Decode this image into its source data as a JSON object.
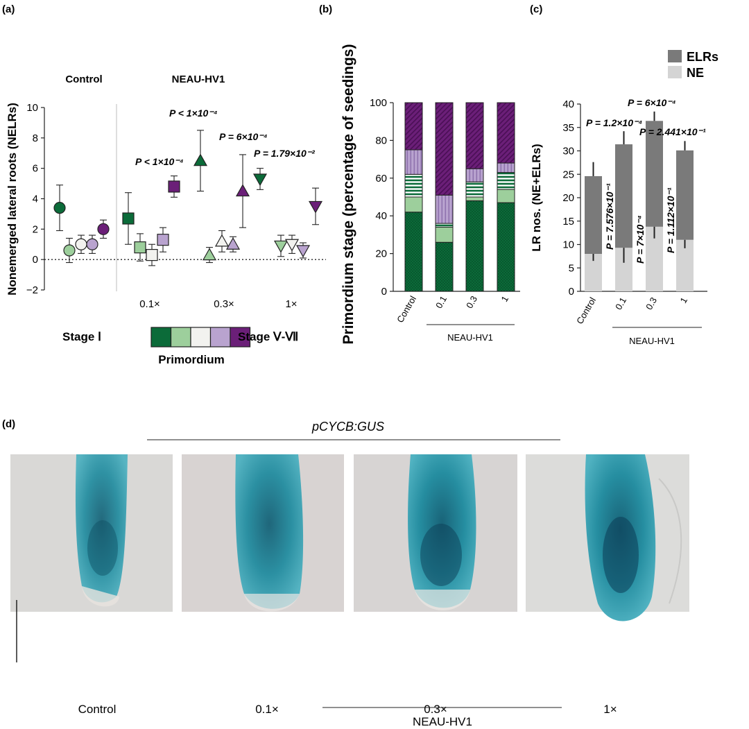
{
  "panels": {
    "a": "(a)",
    "b": "(b)",
    "c": "(c)",
    "d": "(d)"
  },
  "colors": {
    "stage1": "#0b6b39",
    "stage2": "#9dcf9c",
    "stage3": "#f2f2ef",
    "stage4": "#b9a3cf",
    "stage5": "#6b1f78",
    "ne": "#d4d4d4",
    "elrs": "#7a7a7a"
  },
  "panel_a": {
    "group_control": "Control",
    "group_treat": "NEAU-HV1",
    "legend_left": "Stage Ⅰ",
    "legend_right": "Stage Ⅴ-Ⅶ",
    "legend_caption": "Primordium",
    "p_labels": [
      {
        "text": "P < 1×10⁻⁴"
      },
      {
        "text": "P < 1×10⁻⁴"
      },
      {
        "text": "P = 6×10⁻⁴"
      },
      {
        "text": "P = 1.79×10⁻²"
      }
    ]
  },
  "panel_b": {
    "group_label": "NEAU-HV1"
  },
  "panel_c": {
    "legend": [
      "ELRs",
      "NE"
    ],
    "group_label": "NEAU-HV1",
    "p_top": [
      "P = 1.2×10⁻⁴",
      "P = 6×10⁻⁴",
      "P = 2.441×10⁻¹"
    ],
    "p_vertical": [
      "P = 7.576×10⁻¹",
      "P = 7×10⁻⁴",
      "P = 1.112×10⁻¹"
    ]
  },
  "panel_d": {
    "title": "pCYCB:GUS",
    "captions": [
      "Control",
      "0.1×",
      "0.3×",
      "1×"
    ],
    "group_label": "NEAU-HV1"
  },
  "chart_data": [
    {
      "type": "scatter",
      "ylabel": "Nonemerged lateral roots (NELRs)",
      "ylim": [
        -2,
        10
      ],
      "yticks": [
        -2,
        0,
        2,
        4,
        6,
        8,
        10
      ],
      "categories": [
        "Control",
        "0.1×",
        "0.3×",
        "1×"
      ],
      "series": [
        {
          "values": [
            3.4,
            2.7,
            6.5,
            5.3
          ],
          "errors": [
            1.5,
            1.7,
            2.0,
            0.7
          ]
        },
        {
          "values": [
            0.6,
            0.8,
            0.3,
            0.9
          ],
          "errors": [
            0.8,
            0.9,
            0.5,
            0.7
          ]
        },
        {
          "values": [
            1.0,
            0.3,
            1.2,
            1.0
          ],
          "errors": [
            0.6,
            0.7,
            0.7,
            0.6
          ]
        },
        {
          "values": [
            1.0,
            1.3,
            1.0,
            0.6
          ],
          "errors": [
            0.6,
            0.8,
            0.5,
            0.5
          ]
        },
        {
          "values": [
            2.0,
            4.8,
            4.5,
            3.5
          ],
          "errors": [
            0.6,
            0.7,
            2.4,
            1.2
          ]
        }
      ]
    },
    {
      "type": "bar",
      "ylabel": "Primordium stage (percentage of seedings)",
      "ylim": [
        0,
        100
      ],
      "yticks": [
        0,
        20,
        40,
        60,
        80,
        100
      ],
      "categories": [
        "Control",
        "0.1",
        "0.3",
        "1"
      ],
      "series": [
        {
          "values": [
            42,
            26,
            48,
            47
          ]
        },
        {
          "values": [
            8,
            8,
            2,
            7
          ]
        },
        {
          "values": [
            12,
            2,
            8,
            9
          ]
        },
        {
          "values": [
            13,
            15,
            7,
            5
          ]
        },
        {
          "values": [
            25,
            49,
            35,
            32
          ]
        }
      ]
    },
    {
      "type": "bar",
      "ylabel": "LR nos. (NE+ELRs)",
      "ylim": [
        0,
        40
      ],
      "yticks": [
        0,
        5,
        10,
        15,
        20,
        25,
        30,
        35,
        40
      ],
      "categories": [
        "Control",
        "0.1",
        "0.3",
        "1"
      ],
      "series": [
        {
          "name": "NE",
          "values": [
            8,
            9.3,
            13.8,
            11
          ],
          "errors": [
            1.5,
            3.2,
            2.5,
            1.8
          ]
        },
        {
          "name": "ELRs",
          "values": [
            16.6,
            22.1,
            22.6,
            19.1
          ],
          "errors": [
            3.0,
            2.8,
            2.0,
            2.0
          ]
        }
      ]
    }
  ]
}
